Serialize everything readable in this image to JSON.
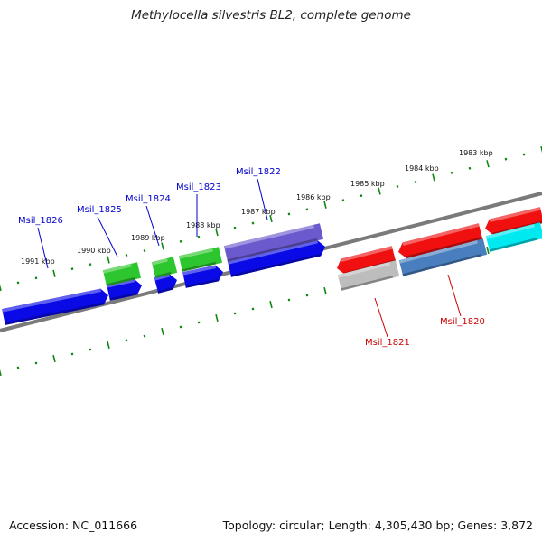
{
  "title": "Methylocella silvestris BL2, complete genome",
  "footer": {
    "accession": "Accession: NC_011666",
    "summary": "Topology: circular; Length: 4,305,430 bp; Genes: 3,872"
  },
  "colors": {
    "backbone": "#808080",
    "ticks": "#118811",
    "label_fwd": "#0000cc",
    "label_rev": "#cc0000",
    "blue": "#0a0ae6",
    "green": "#2ec62e",
    "purple": "#6a5acd",
    "red": "#f01010",
    "gray": "#bdbdbd",
    "steel": "#4a7fbf",
    "cyan": "#00e8f0"
  },
  "kbp_labels": [
    "1983 kbp",
    "1984 kbp",
    "1985 kbp",
    "1986 kbp",
    "1987 kbp",
    "1988 kbp",
    "1989 kbp",
    "1990 kbp",
    "1991 kbp"
  ],
  "gene_labels": [
    {
      "name": "Msil_1826",
      "strand": "fwd"
    },
    {
      "name": "Msil_1825",
      "strand": "fwd"
    },
    {
      "name": "Msil_1824",
      "strand": "fwd"
    },
    {
      "name": "Msil_1823",
      "strand": "fwd"
    },
    {
      "name": "Msil_1822",
      "strand": "fwd"
    },
    {
      "name": "Msil_1821",
      "strand": "rev"
    },
    {
      "name": "Msil_1820",
      "strand": "rev"
    }
  ]
}
